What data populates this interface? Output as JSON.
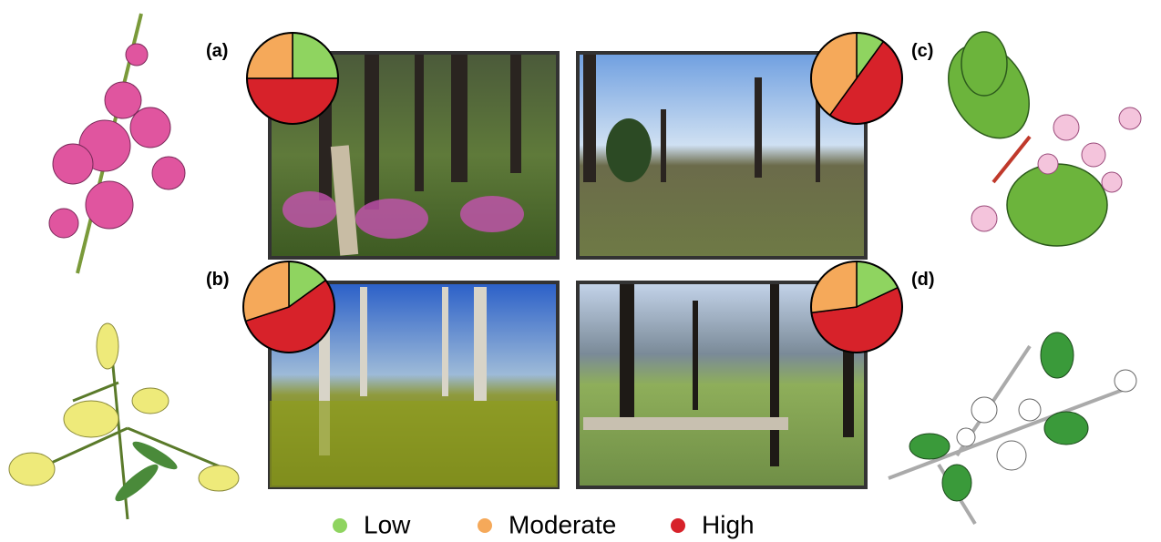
{
  "chart_data": [
    {
      "type": "pie",
      "title": "(a)",
      "categories": [
        "Low",
        "Moderate",
        "High"
      ],
      "values": [
        25,
        25,
        50
      ],
      "colors": [
        "#8fd460",
        "#f5a95a",
        "#d7222a"
      ]
    },
    {
      "type": "pie",
      "title": "(b)",
      "categories": [
        "Low",
        "Moderate",
        "High"
      ],
      "values": [
        15,
        30,
        55
      ],
      "colors": [
        "#8fd460",
        "#f5a95a",
        "#d7222a"
      ]
    },
    {
      "type": "pie",
      "title": "(c)",
      "categories": [
        "Low",
        "Moderate",
        "High"
      ],
      "values": [
        10,
        40,
        50
      ],
      "colors": [
        "#8fd460",
        "#f5a95a",
        "#d7222a"
      ]
    },
    {
      "type": "pie",
      "title": "(d)",
      "categories": [
        "Low",
        "Moderate",
        "High"
      ],
      "values": [
        18,
        27,
        55
      ],
      "colors": [
        "#8fd460",
        "#f5a95a",
        "#d7222a"
      ]
    }
  ]
}
